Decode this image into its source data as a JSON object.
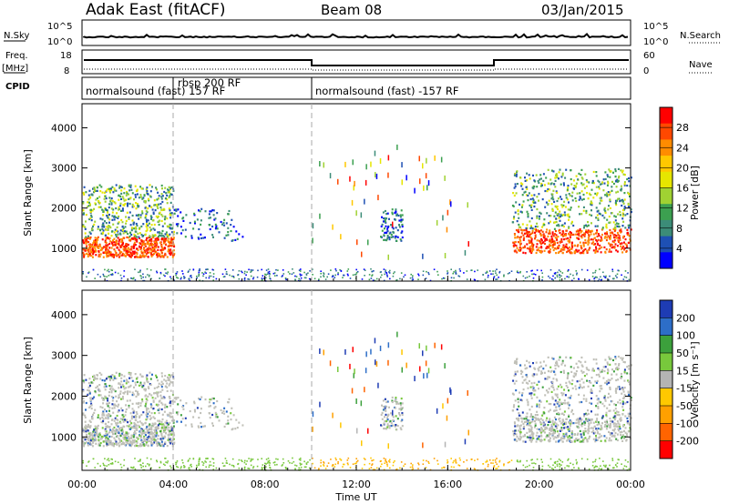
{
  "header": {
    "station": "Adak East (fitACF)",
    "beam": "Beam 08",
    "date": "03/Jan/2015"
  },
  "side_labels": {
    "nsky": "N.Sky",
    "nsearch": "N.Search",
    "freq_line1": "Freq.",
    "freq_line2": "[MHz]",
    "nave": "Nave",
    "cpid": "CPID"
  },
  "noise_panel": {
    "left_ticks": [
      "10^5",
      "10^0"
    ],
    "right_ticks": [
      "10^5",
      "10^0"
    ]
  },
  "freq_panel": {
    "left_ticks": [
      "18",
      "8"
    ],
    "right_ticks": [
      "60",
      "0"
    ]
  },
  "cpid_labels": {
    "seg1": "normalsound (fast) 157 RF",
    "seg2": "rbsp 200 RF",
    "seg3": "normalsound (fast) -157 RF"
  },
  "xaxis": {
    "label": "Time UT",
    "ticks": [
      "00:00",
      "04:00",
      "08:00",
      "12:00",
      "16:00",
      "20:00",
      "00:00"
    ]
  },
  "chart_data": [
    {
      "type": "heatmap",
      "name": "power",
      "ylabel": "Slant Range [km]",
      "xlim_hours": [
        0,
        24
      ],
      "ylim_km": [
        180,
        4600
      ],
      "yticks": [
        "1000",
        "2000",
        "3000",
        "4000"
      ],
      "colorbar": {
        "label": "Power [dB]",
        "ticks": [
          "28",
          "24",
          "20",
          "16",
          "12",
          "8",
          "4"
        ],
        "colors": [
          "#ff0000",
          "#ff4800",
          "#ff8c00",
          "#ffc800",
          "#e6e600",
          "#a0d232",
          "#3ca050",
          "#3c8c78",
          "#1e50b4",
          "#0000ff"
        ]
      },
      "regions": [
        {
          "t0": 0.0,
          "t1": 4.0,
          "r0": 800,
          "r1": 1300,
          "level": "high"
        },
        {
          "t0": 0.0,
          "t1": 4.0,
          "r0": 1300,
          "r1": 2600,
          "level": "mid"
        },
        {
          "t0": 4.0,
          "t1": 7.0,
          "r0": 1200,
          "r1": 2000,
          "level": "low"
        },
        {
          "t0": 13.0,
          "t1": 14.0,
          "r0": 1200,
          "r1": 2000,
          "level": "low"
        },
        {
          "t0": 18.8,
          "t1": 24.0,
          "r0": 900,
          "r1": 1500,
          "level": "high"
        },
        {
          "t0": 18.8,
          "t1": 24.0,
          "r0": 1500,
          "r1": 3000,
          "level": "mid"
        }
      ]
    },
    {
      "type": "heatmap",
      "name": "velocity",
      "ylabel": "Slant Range [km]",
      "xlim_hours": [
        0,
        24
      ],
      "ylim_km": [
        180,
        4600
      ],
      "yticks": [
        "1000",
        "2000",
        "3000",
        "4000"
      ],
      "colorbar": {
        "label": "Velocity [m s⁻¹]",
        "ticks": [
          "200",
          "100",
          "50",
          "15",
          "-15",
          "-50",
          "-100",
          "-200"
        ],
        "colors": [
          "#1e3cb4",
          "#2d6ec8",
          "#3ca03c",
          "#78c83c",
          "#b4b4b4",
          "#ffc800",
          "#ffa000",
          "#ff6400",
          "#ff0000"
        ]
      }
    }
  ],
  "colors": {
    "grid_dash": "#aaaaaa",
    "gray_ground": "#c0c0b8"
  }
}
